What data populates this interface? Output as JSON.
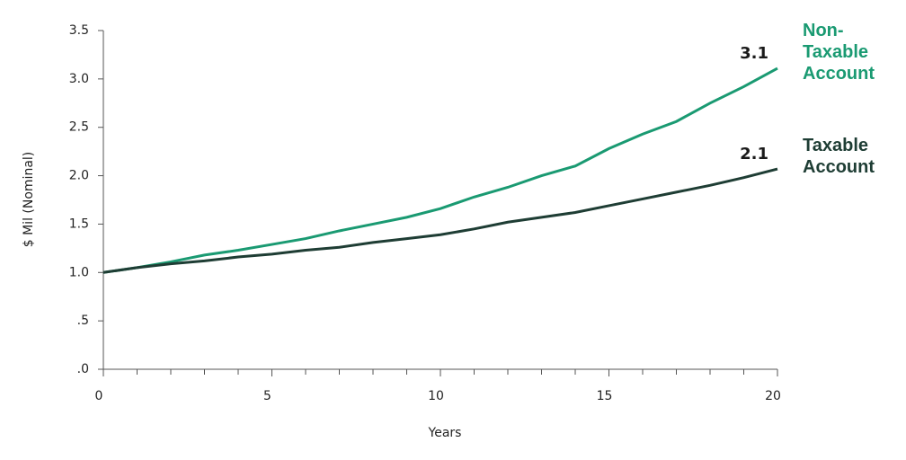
{
  "chart_data": {
    "type": "line",
    "y_label": "$ Mil (Nominal)",
    "x_label": "Years",
    "x": [
      0,
      1,
      2,
      3,
      4,
      5,
      6,
      7,
      8,
      9,
      10,
      11,
      12,
      13,
      14,
      15,
      16,
      17,
      18,
      19,
      20
    ],
    "xlim": [
      0,
      20
    ],
    "xticks": [
      0,
      5,
      10,
      15,
      20
    ],
    "ylim": [
      0,
      3.5
    ],
    "yticks": [
      {
        "value": 0,
        "label": ".0"
      },
      {
        "value": 0.5,
        "label": ".5"
      },
      {
        "value": 1,
        "label": "1.0"
      },
      1.5,
      {
        "value": 2,
        "label": "2.0"
      },
      2.5,
      {
        "value": 3,
        "label": "3.0"
      },
      3.5
    ],
    "series": [
      {
        "name": "Non-Taxable Account",
        "color": "#1a9a72",
        "values": [
          1.0,
          1.05,
          1.11,
          1.18,
          1.23,
          1.29,
          1.35,
          1.43,
          1.5,
          1.57,
          1.66,
          1.78,
          1.88,
          2.0,
          2.1,
          2.28,
          2.43,
          2.56,
          2.75,
          2.92,
          3.11
        ],
        "value_labels": [
          null,
          null,
          null,
          null,
          null,
          null,
          null,
          null,
          null,
          null,
          null,
          null,
          null,
          null,
          null,
          null,
          null,
          null,
          null,
          null,
          "3.1"
        ]
      },
      {
        "name": "Taxable Account",
        "color": "#1e3d34",
        "values": [
          1.0,
          1.05,
          1.09,
          1.12,
          1.16,
          1.19,
          1.23,
          1.26,
          1.31,
          1.35,
          1.39,
          1.45,
          1.52,
          1.57,
          1.62,
          1.69,
          1.76,
          1.83,
          1.9,
          1.98,
          2.07
        ],
        "value_labels": [
          null,
          null,
          null,
          null,
          null,
          null,
          null,
          null,
          null,
          null,
          null,
          null,
          null,
          null,
          null,
          null,
          null,
          null,
          null,
          null,
          "2.1"
        ]
      }
    ]
  }
}
